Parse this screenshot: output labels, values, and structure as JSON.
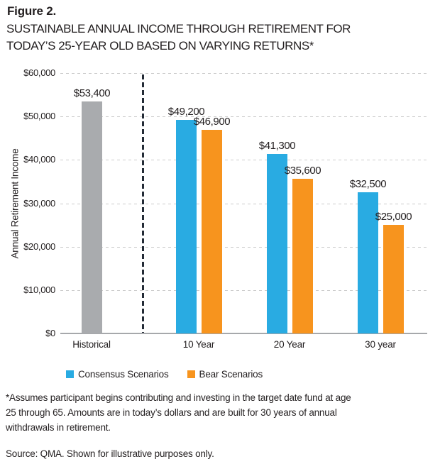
{
  "header": {
    "figure_label": "Figure 2.",
    "title_line1": "SUSTAINABLE ANNUAL INCOME THROUGH RETIREMENT FOR",
    "title_line2": "TODAY’S 25-YEAR OLD BASED ON VARYING RETURNS*"
  },
  "chart_data": {
    "type": "bar",
    "title": "Sustainable annual income through retirement for today’s 25-year old based on varying returns",
    "xlabel": "",
    "ylabel": "Annual Retirement Income",
    "ylim": [
      0,
      60000
    ],
    "grid": "horizontal-dashed",
    "legend_position": "bottom-left",
    "categories": [
      "Historical",
      "10 Year",
      "20 Year",
      "30 year"
    ],
    "series": [
      {
        "name": "Historical",
        "color": "#A9ABAE",
        "values": [
          53400,
          null,
          null,
          null
        ],
        "labels": [
          "$53,400",
          null,
          null,
          null
        ],
        "in_legend": false
      },
      {
        "name": "Consensus Scenarios",
        "color": "#29ABE2",
        "values": [
          null,
          49200,
          41300,
          32500
        ],
        "labels": [
          null,
          "$49,200",
          "$41,300",
          "$32,500"
        ],
        "in_legend": true
      },
      {
        "name": "Bear Scenarios",
        "color": "#F7941E",
        "values": [
          null,
          46900,
          35600,
          25000
        ],
        "labels": [
          null,
          "$46,900",
          "$35,600",
          "$25,000"
        ],
        "in_legend": true
      }
    ],
    "yticks": [
      {
        "value": 0,
        "label": "$0"
      },
      {
        "value": 10000,
        "label": "$10,000"
      },
      {
        "value": 20000,
        "label": "$20,000"
      },
      {
        "value": 30000,
        "label": "$30,000"
      },
      {
        "value": 40000,
        "label": "$40,000"
      },
      {
        "value": 50000,
        "label": "$50,000"
      },
      {
        "value": 60000,
        "label": "$60,000"
      }
    ],
    "separator": {
      "after_category": "Historical",
      "style": "vertical-dashed",
      "color": "#232B36"
    },
    "legend": [
      {
        "label": "Consensus Scenarios",
        "color": "#29ABE2"
      },
      {
        "label": "Bear Scenarios",
        "color": "#F7941E"
      }
    ]
  },
  "footnotes": {
    "assumption_lines": [
      "*Assumes participant begins contributing and investing in the target date fund at age",
      "25 through 65. Amounts are in today’s dollars and are built for 30 years of annual",
      "withdrawals in retirement."
    ],
    "source": "Source: QMA. Shown for illustrative purposes only."
  }
}
